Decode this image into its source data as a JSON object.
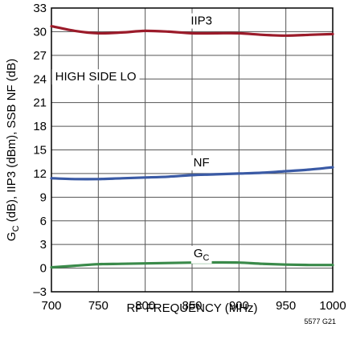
{
  "chart_data": {
    "type": "line",
    "xlabel": "RF FREQUENCY (MHz)",
    "ylabel": {
      "g": "G",
      "sub": "C",
      "rest": " (dB), IIP3 (dBm), SSB NF (dB)"
    },
    "xlim": [
      700,
      1000
    ],
    "ylim": [
      -3,
      33
    ],
    "xticks": [
      "700",
      "750",
      "800",
      "850",
      "900",
      "950",
      "1000"
    ],
    "yticks": [
      "–3",
      "0",
      "3",
      "6",
      "9",
      "12",
      "15",
      "18",
      "21",
      "24",
      "27",
      "30",
      "33"
    ],
    "grid": true,
    "annotation": "HIGH SIDE LO",
    "figure_id": "5577 G21",
    "series": [
      {
        "name": "IIP3",
        "color": "#9b1b2a",
        "x": [
          700,
          725,
          750,
          775,
          800,
          825,
          850,
          875,
          900,
          925,
          950,
          975,
          1000
        ],
        "y": [
          30.7,
          30.1,
          29.8,
          29.9,
          30.1,
          30.0,
          29.8,
          29.8,
          29.8,
          29.6,
          29.5,
          29.6,
          29.7
        ]
      },
      {
        "name": "NF",
        "color": "#3a5aa5",
        "x": [
          700,
          725,
          750,
          775,
          800,
          825,
          850,
          875,
          900,
          925,
          950,
          975,
          1000
        ],
        "y": [
          11.4,
          11.3,
          11.3,
          11.4,
          11.5,
          11.6,
          11.8,
          11.9,
          12.0,
          12.1,
          12.3,
          12.5,
          12.8
        ]
      },
      {
        "name": {
          "g": "G",
          "sub": "C"
        },
        "color": "#3a8a4a",
        "x": [
          700,
          725,
          750,
          775,
          800,
          825,
          850,
          875,
          900,
          925,
          950,
          975,
          1000
        ],
        "y": [
          0.1,
          0.3,
          0.5,
          0.55,
          0.6,
          0.65,
          0.7,
          0.72,
          0.7,
          0.55,
          0.45,
          0.4,
          0.4
        ]
      }
    ]
  }
}
